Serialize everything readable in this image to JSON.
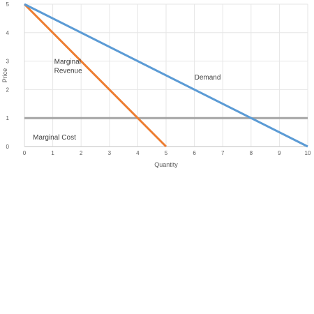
{
  "chart_data": {
    "type": "line",
    "title": "",
    "xlabel": "Quantity",
    "ylabel": "Price",
    "xlim": [
      0,
      10
    ],
    "ylim": [
      0,
      5
    ],
    "x_ticks": [
      "0",
      "1",
      "2",
      "3",
      "4",
      "5",
      "6",
      "7",
      "8",
      "9",
      "10"
    ],
    "y_ticks": [
      "0",
      "1",
      "2",
      "3",
      "4",
      "5"
    ],
    "grid": true,
    "legend": "none",
    "series": [
      {
        "name": "Demand",
        "color": "#5B9BD5",
        "points": [
          [
            0,
            5
          ],
          [
            10,
            0
          ]
        ]
      },
      {
        "name": "Marginal Revenue",
        "color": "#ED7D31",
        "points": [
          [
            0,
            5
          ],
          [
            5,
            0
          ]
        ]
      },
      {
        "name": "Marginal Cost",
        "color": "#A5A5A5",
        "points": [
          [
            0,
            1
          ],
          [
            10,
            1
          ]
        ]
      }
    ],
    "annotations": [
      {
        "text": "Demand",
        "x": 6,
        "y": 2.35
      },
      {
        "text": "Marginal\nRevenue",
        "x": 1.05,
        "y": 2.9
      },
      {
        "text": "Marginal Cost",
        "x": 0.3,
        "y": 0.25
      }
    ]
  }
}
